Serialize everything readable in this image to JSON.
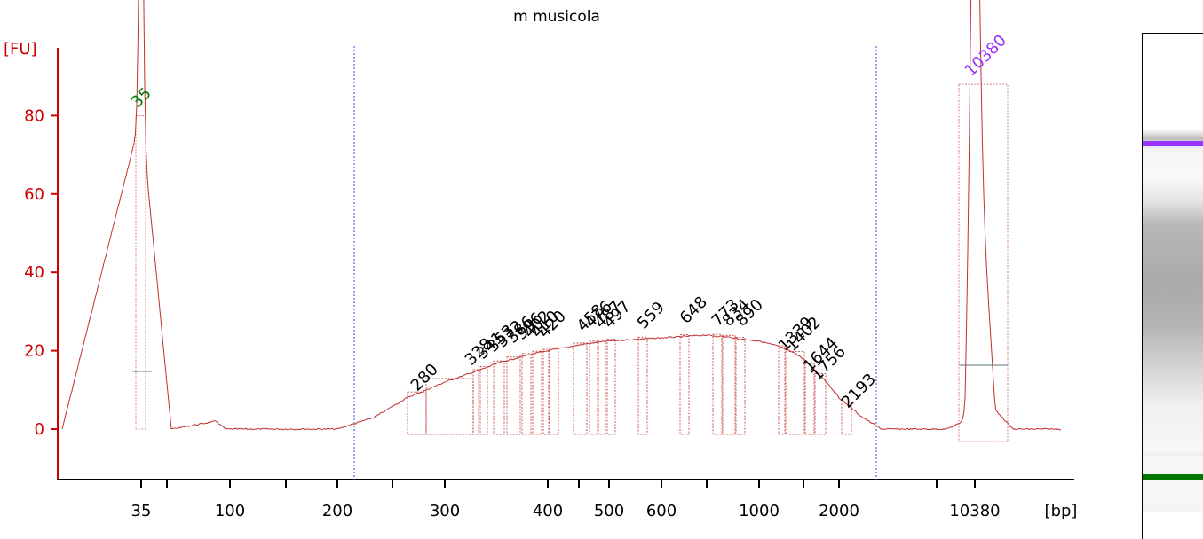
{
  "chart_data": {
    "type": "line",
    "title": "m musicola",
    "ylabel": "[FU]",
    "xlabel": "[bp]",
    "ylim": [
      -13,
      98
    ],
    "yticks": [
      0,
      20,
      40,
      60,
      80
    ],
    "xtick_labels": [
      "35",
      "100",
      "200",
      "300",
      "400",
      "500",
      "600",
      "1000",
      "2000",
      "10380"
    ],
    "marker_peaks": [
      {
        "label": "35",
        "size_bp": 35,
        "fu": 80,
        "color": "#007700"
      },
      {
        "label": "10380",
        "size_bp": 10380,
        "fu": 88,
        "color": "#9933ff"
      }
    ],
    "peak_labels": [
      "280",
      "328",
      "341",
      "353",
      "372",
      "386",
      "396",
      "402",
      "410",
      "420",
      "458",
      "476",
      "487",
      "497",
      "559",
      "648",
      "773",
      "834",
      "890",
      "1339",
      "1402",
      "1644",
      "1756",
      "2193"
    ],
    "series": [
      {
        "color": "#c03030",
        "size_bp": [
          20,
          35,
          50,
          85,
          100,
          150,
          200,
          230,
          260,
          280,
          300,
          330,
          350,
          380,
          400,
          450,
          500,
          560,
          650,
          750,
          850,
          900,
          1000,
          1200,
          1400,
          1600,
          1800,
          2000,
          2300,
          2700,
          3500,
          6000,
          9000,
          10380,
          11500,
          13000,
          16000
        ],
        "fu": [
          0,
          80,
          0,
          2,
          -1,
          -1,
          0,
          3,
          8,
          10,
          12,
          15,
          17,
          19,
          20,
          21.5,
          22.5,
          23,
          23.5,
          24,
          23.5,
          23,
          22.5,
          21,
          19,
          15.5,
          12,
          8,
          3,
          0,
          -1,
          -1,
          2,
          88,
          5,
          -2,
          -3.5
        ]
      }
    ]
  },
  "gel": {
    "upper_marker_color": "#9933ff",
    "lower_marker_color": "#007700"
  }
}
